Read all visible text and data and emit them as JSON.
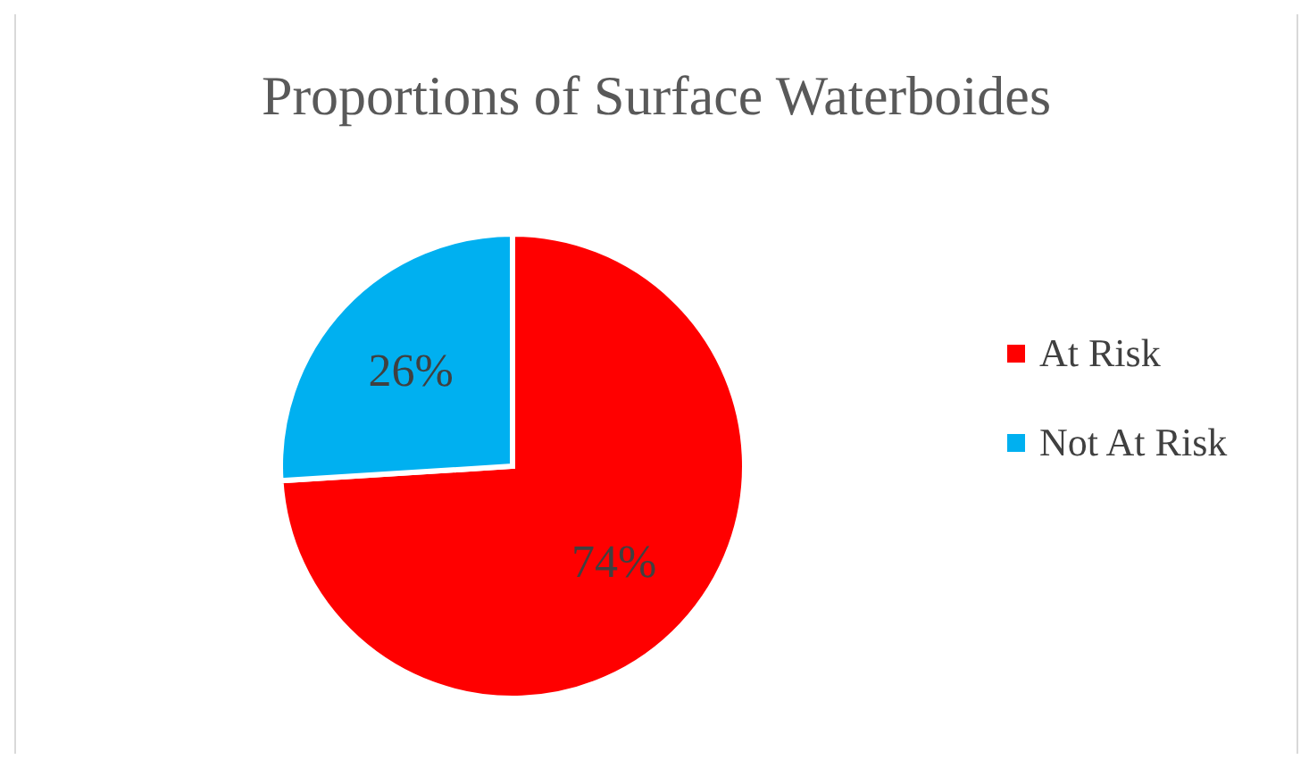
{
  "chart_data": {
    "type": "pie",
    "title": "Proportions of Surface Waterboides",
    "categories": [
      "At Risk",
      "Not At Risk"
    ],
    "values": [
      74,
      26
    ],
    "colors": [
      "#ff0000",
      "#00b0f0"
    ],
    "value_labels": [
      "74%",
      "26%"
    ],
    "legend": "right"
  }
}
